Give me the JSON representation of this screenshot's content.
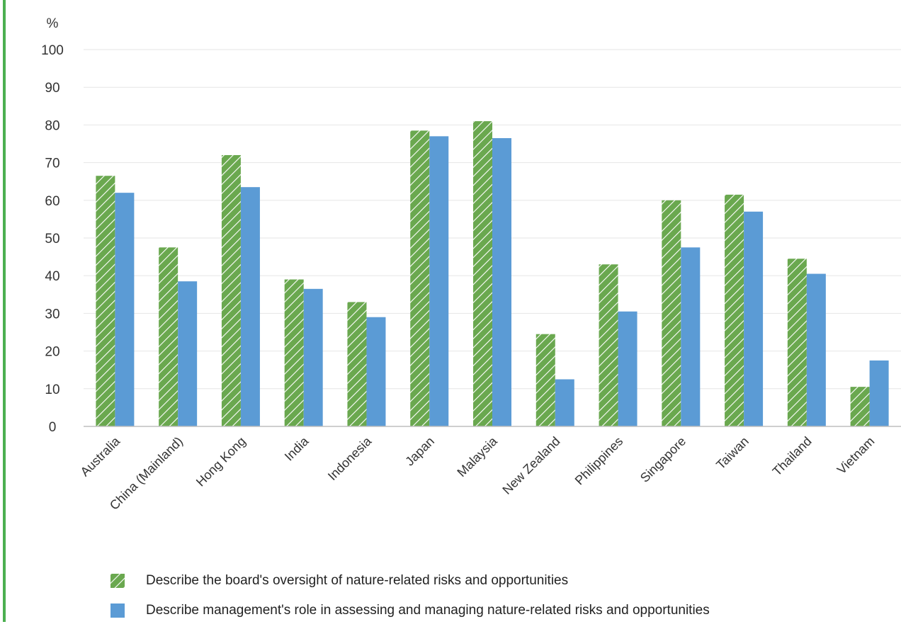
{
  "chart_data": {
    "type": "bar",
    "ylabel": "%",
    "ylim": [
      0,
      100
    ],
    "yticks": [
      0,
      10,
      20,
      30,
      40,
      50,
      60,
      70,
      80,
      90,
      100
    ],
    "grid": true,
    "legend_position": "bottom",
    "categories": [
      "Australia",
      "China (Mainland)",
      "Hong Kong",
      "India",
      "Indonesia",
      "Japan",
      "Malaysia",
      "New Zealand",
      "Philippines",
      "Singapore",
      "Taiwan",
      "Thailand",
      "Vietnam"
    ],
    "series": [
      {
        "name": "Describe the board's oversight of nature-related risks and opportunities",
        "color": "#6aa84f",
        "pattern": "diagonal-hatch",
        "values": [
          66.5,
          47.5,
          72,
          39,
          33,
          78.5,
          81,
          24.5,
          43,
          60,
          61.5,
          44.5,
          10.5
        ]
      },
      {
        "name": "Describe management's role in assessing and managing nature-related risks and opportunities",
        "color": "#5b9bd5",
        "pattern": "solid",
        "values": [
          62,
          38.5,
          63.5,
          36.5,
          29,
          77,
          76.5,
          12.5,
          30.5,
          47.5,
          57,
          40.5,
          17.5
        ]
      }
    ]
  }
}
